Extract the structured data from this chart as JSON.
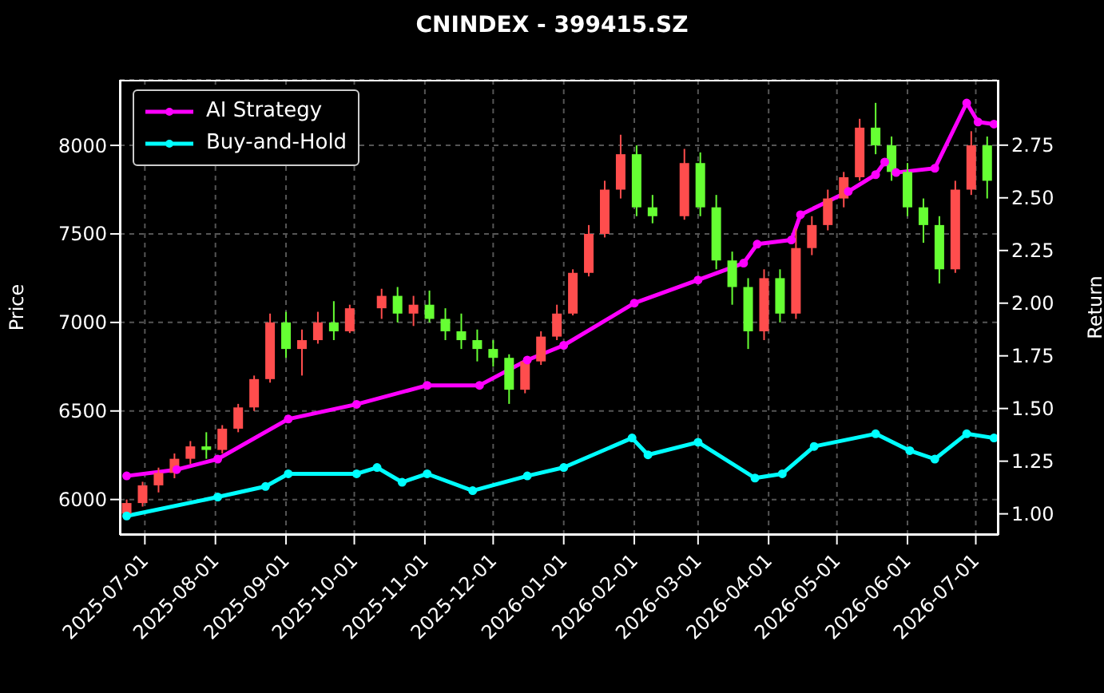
{
  "chart_data": {
    "type": "candlestick",
    "title": "CNINDEX - 399415.SZ",
    "xlabel": null,
    "ylabel": "Price",
    "y2label": "Return",
    "x": [
      "2025-06-23",
      "2025-06-30",
      "2025-07-07",
      "2025-07-14",
      "2025-07-21",
      "2025-07-28",
      "2025-08-04",
      "2025-08-11",
      "2025-08-18",
      "2025-08-25",
      "2025-09-01",
      "2025-09-08",
      "2025-09-15",
      "2025-09-22",
      "2025-09-29",
      "2025-10-13",
      "2025-10-20",
      "2025-10-27",
      "2025-11-03",
      "2025-11-10",
      "2025-11-17",
      "2025-11-24",
      "2025-12-01",
      "2025-12-08",
      "2025-12-15",
      "2025-12-22",
      "2025-12-29",
      "2026-01-05",
      "2026-01-12",
      "2026-01-19",
      "2026-01-26",
      "2026-02-02",
      "2026-02-09",
      "2026-02-23",
      "2026-03-02",
      "2026-03-09",
      "2026-03-16",
      "2026-03-23",
      "2026-03-30",
      "2026-04-06",
      "2026-04-13",
      "2026-04-20",
      "2026-04-27",
      "2026-05-04",
      "2026-05-11",
      "2026-05-18",
      "2026-05-25",
      "2026-06-01",
      "2026-06-08",
      "2026-06-15",
      "2026-06-22",
      "2026-06-29",
      "2026-07-06"
    ],
    "ohlc": [
      [
        5920,
        6000,
        5900,
        5980
      ],
      [
        5980,
        6100,
        5960,
        6080
      ],
      [
        6080,
        6180,
        6040,
        6150
      ],
      [
        6150,
        6260,
        6120,
        6230
      ],
      [
        6230,
        6330,
        6200,
        6300
      ],
      [
        6300,
        6380,
        6230,
        6280
      ],
      [
        6280,
        6420,
        6260,
        6400
      ],
      [
        6400,
        6540,
        6380,
        6520
      ],
      [
        6520,
        6700,
        6500,
        6680
      ],
      [
        6680,
        7050,
        6660,
        7000
      ],
      [
        7000,
        7060,
        6800,
        6850
      ],
      [
        6850,
        6960,
        6700,
        6900
      ],
      [
        6900,
        7060,
        6880,
        7000
      ],
      [
        7000,
        7120,
        6900,
        6950
      ],
      [
        6950,
        7100,
        6940,
        7080
      ],
      [
        7080,
        7190,
        7020,
        7150
      ],
      [
        7150,
        7200,
        7000,
        7050
      ],
      [
        7050,
        7150,
        6980,
        7100
      ],
      [
        7100,
        7180,
        7000,
        7020
      ],
      [
        7020,
        7080,
        6900,
        6950
      ],
      [
        6950,
        7050,
        6850,
        6900
      ],
      [
        6900,
        6960,
        6780,
        6850
      ],
      [
        6850,
        6900,
        6750,
        6800
      ],
      [
        6800,
        6820,
        6540,
        6620
      ],
      [
        6620,
        6800,
        6600,
        6780
      ],
      [
        6780,
        6950,
        6760,
        6920
      ],
      [
        6920,
        7100,
        6900,
        7050
      ],
      [
        7050,
        7300,
        7040,
        7280
      ],
      [
        7280,
        7550,
        7260,
        7500
      ],
      [
        7500,
        7800,
        7480,
        7750
      ],
      [
        7750,
        8060,
        7700,
        7950
      ],
      [
        7950,
        8000,
        7600,
        7650
      ],
      [
        7650,
        7720,
        7560,
        7600
      ],
      [
        7600,
        7980,
        7580,
        7900
      ],
      [
        7900,
        7960,
        7600,
        7650
      ],
      [
        7650,
        7720,
        7300,
        7350
      ],
      [
        7350,
        7400,
        7100,
        7200
      ],
      [
        7200,
        7250,
        6850,
        6950
      ],
      [
        6950,
        7300,
        6900,
        7250
      ],
      [
        7250,
        7300,
        7000,
        7050
      ],
      [
        7050,
        7530,
        7020,
        7420
      ],
      [
        7420,
        7600,
        7380,
        7550
      ],
      [
        7550,
        7750,
        7520,
        7700
      ],
      [
        7700,
        7850,
        7650,
        7820
      ],
      [
        7820,
        8150,
        7800,
        8100
      ],
      [
        8100,
        8240,
        7950,
        8000
      ],
      [
        8000,
        8050,
        7800,
        7850
      ],
      [
        7850,
        7900,
        7600,
        7650
      ],
      [
        7650,
        7700,
        7450,
        7550
      ],
      [
        7550,
        7600,
        7220,
        7300
      ],
      [
        7300,
        7800,
        7280,
        7750
      ],
      [
        7750,
        8080,
        7720,
        8000
      ],
      [
        8000,
        8050,
        7700,
        7800
      ]
    ],
    "colors": [
      "#ff4d4d",
      "#ff4d4d",
      "#ff4d4d",
      "#ff4d4d",
      "#ff4d4d",
      "#66ff33",
      "#ff4d4d",
      "#ff4d4d",
      "#ff4d4d",
      "#ff4d4d",
      "#66ff33",
      "#ff4d4d",
      "#ff4d4d",
      "#66ff33",
      "#ff4d4d",
      "#ff4d4d",
      "#66ff33",
      "#ff4d4d",
      "#66ff33",
      "#66ff33",
      "#66ff33",
      "#66ff33",
      "#66ff33",
      "#66ff33",
      "#ff4d4d",
      "#ff4d4d",
      "#ff4d4d",
      "#ff4d4d",
      "#ff4d4d",
      "#ff4d4d",
      "#ff4d4d",
      "#66ff33",
      "#66ff33",
      "#ff4d4d",
      "#66ff33",
      "#66ff33",
      "#66ff33",
      "#66ff33",
      "#ff4d4d",
      "#66ff33",
      "#ff4d4d",
      "#ff4d4d",
      "#ff4d4d",
      "#ff4d4d",
      "#ff4d4d",
      "#66ff33",
      "#66ff33",
      "#66ff33",
      "#66ff33",
      "#66ff33",
      "#ff4d4d",
      "#ff4d4d",
      "#66ff33"
    ],
    "series": [
      {
        "name": "AI Strategy",
        "type": "line",
        "axis": "y2",
        "color": "#ff00ff",
        "x": [
          "2025-06-23",
          "2025-07-15",
          "2025-08-02",
          "2025-09-02",
          "2025-10-02",
          "2025-11-02",
          "2025-11-25",
          "2025-12-16",
          "2026-01-01",
          "2026-02-01",
          "2026-03-01",
          "2026-03-21",
          "2026-03-27",
          "2026-04-11",
          "2026-04-15",
          "2026-05-06",
          "2026-05-18",
          "2026-05-22",
          "2026-05-27",
          "2026-06-13",
          "2026-06-27",
          "2026-07-02",
          "2026-07-09"
        ],
        "values": [
          1.18,
          1.21,
          1.26,
          1.45,
          1.52,
          1.61,
          1.61,
          1.73,
          1.8,
          2.0,
          2.11,
          2.19,
          2.28,
          2.3,
          2.42,
          2.53,
          2.61,
          2.67,
          2.62,
          2.64,
          2.95,
          2.86,
          2.85
        ]
      },
      {
        "name": "Buy-and-Hold",
        "type": "line",
        "axis": "y2",
        "color": "#00ffff",
        "x": [
          "2025-06-23",
          "2025-08-02",
          "2025-08-23",
          "2025-09-02",
          "2025-10-02",
          "2025-10-11",
          "2025-10-22",
          "2025-11-02",
          "2025-11-22",
          "2025-12-16",
          "2026-01-01",
          "2026-01-31",
          "2026-02-07",
          "2026-03-01",
          "2026-03-26",
          "2026-04-07",
          "2026-04-21",
          "2026-05-18",
          "2026-06-02",
          "2026-06-13",
          "2026-06-27",
          "2026-07-09"
        ],
        "values": [
          0.99,
          1.08,
          1.13,
          1.19,
          1.19,
          1.22,
          1.15,
          1.19,
          1.11,
          1.18,
          1.22,
          1.36,
          1.28,
          1.34,
          1.17,
          1.19,
          1.32,
          1.38,
          1.3,
          1.26,
          1.38,
          1.36
        ]
      }
    ],
    "xlim": [
      "2025-06-20",
      "2026-07-11"
    ],
    "xticks": [
      "2025-07-01",
      "2025-08-01",
      "2025-09-01",
      "2025-10-01",
      "2025-11-01",
      "2025-12-01",
      "2026-01-01",
      "2026-02-01",
      "2026-03-01",
      "2026-04-01",
      "2026-05-01",
      "2026-06-01",
      "2026-07-01"
    ],
    "ylim": [
      5800,
      8370
    ],
    "yticks": [
      6000,
      6500,
      7000,
      7500,
      8000
    ],
    "y2lim": [
      0.9,
      3.06
    ],
    "y2ticks": [
      {
        "value": 1,
        "label": "1.00"
      },
      {
        "value": 1.25,
        "label": "1.25"
      },
      {
        "value": 1.5,
        "label": "1.50"
      },
      {
        "value": 1.75,
        "label": "1.75"
      },
      {
        "value": 2,
        "label": "2.00"
      },
      {
        "value": 2.25,
        "label": "2.25"
      },
      {
        "value": 2.5,
        "label": "2.50"
      },
      {
        "value": 2.75,
        "label": "2.75"
      }
    ],
    "grid": true,
    "legend": "top left",
    "marker": "circle",
    "line_style": "solid"
  }
}
